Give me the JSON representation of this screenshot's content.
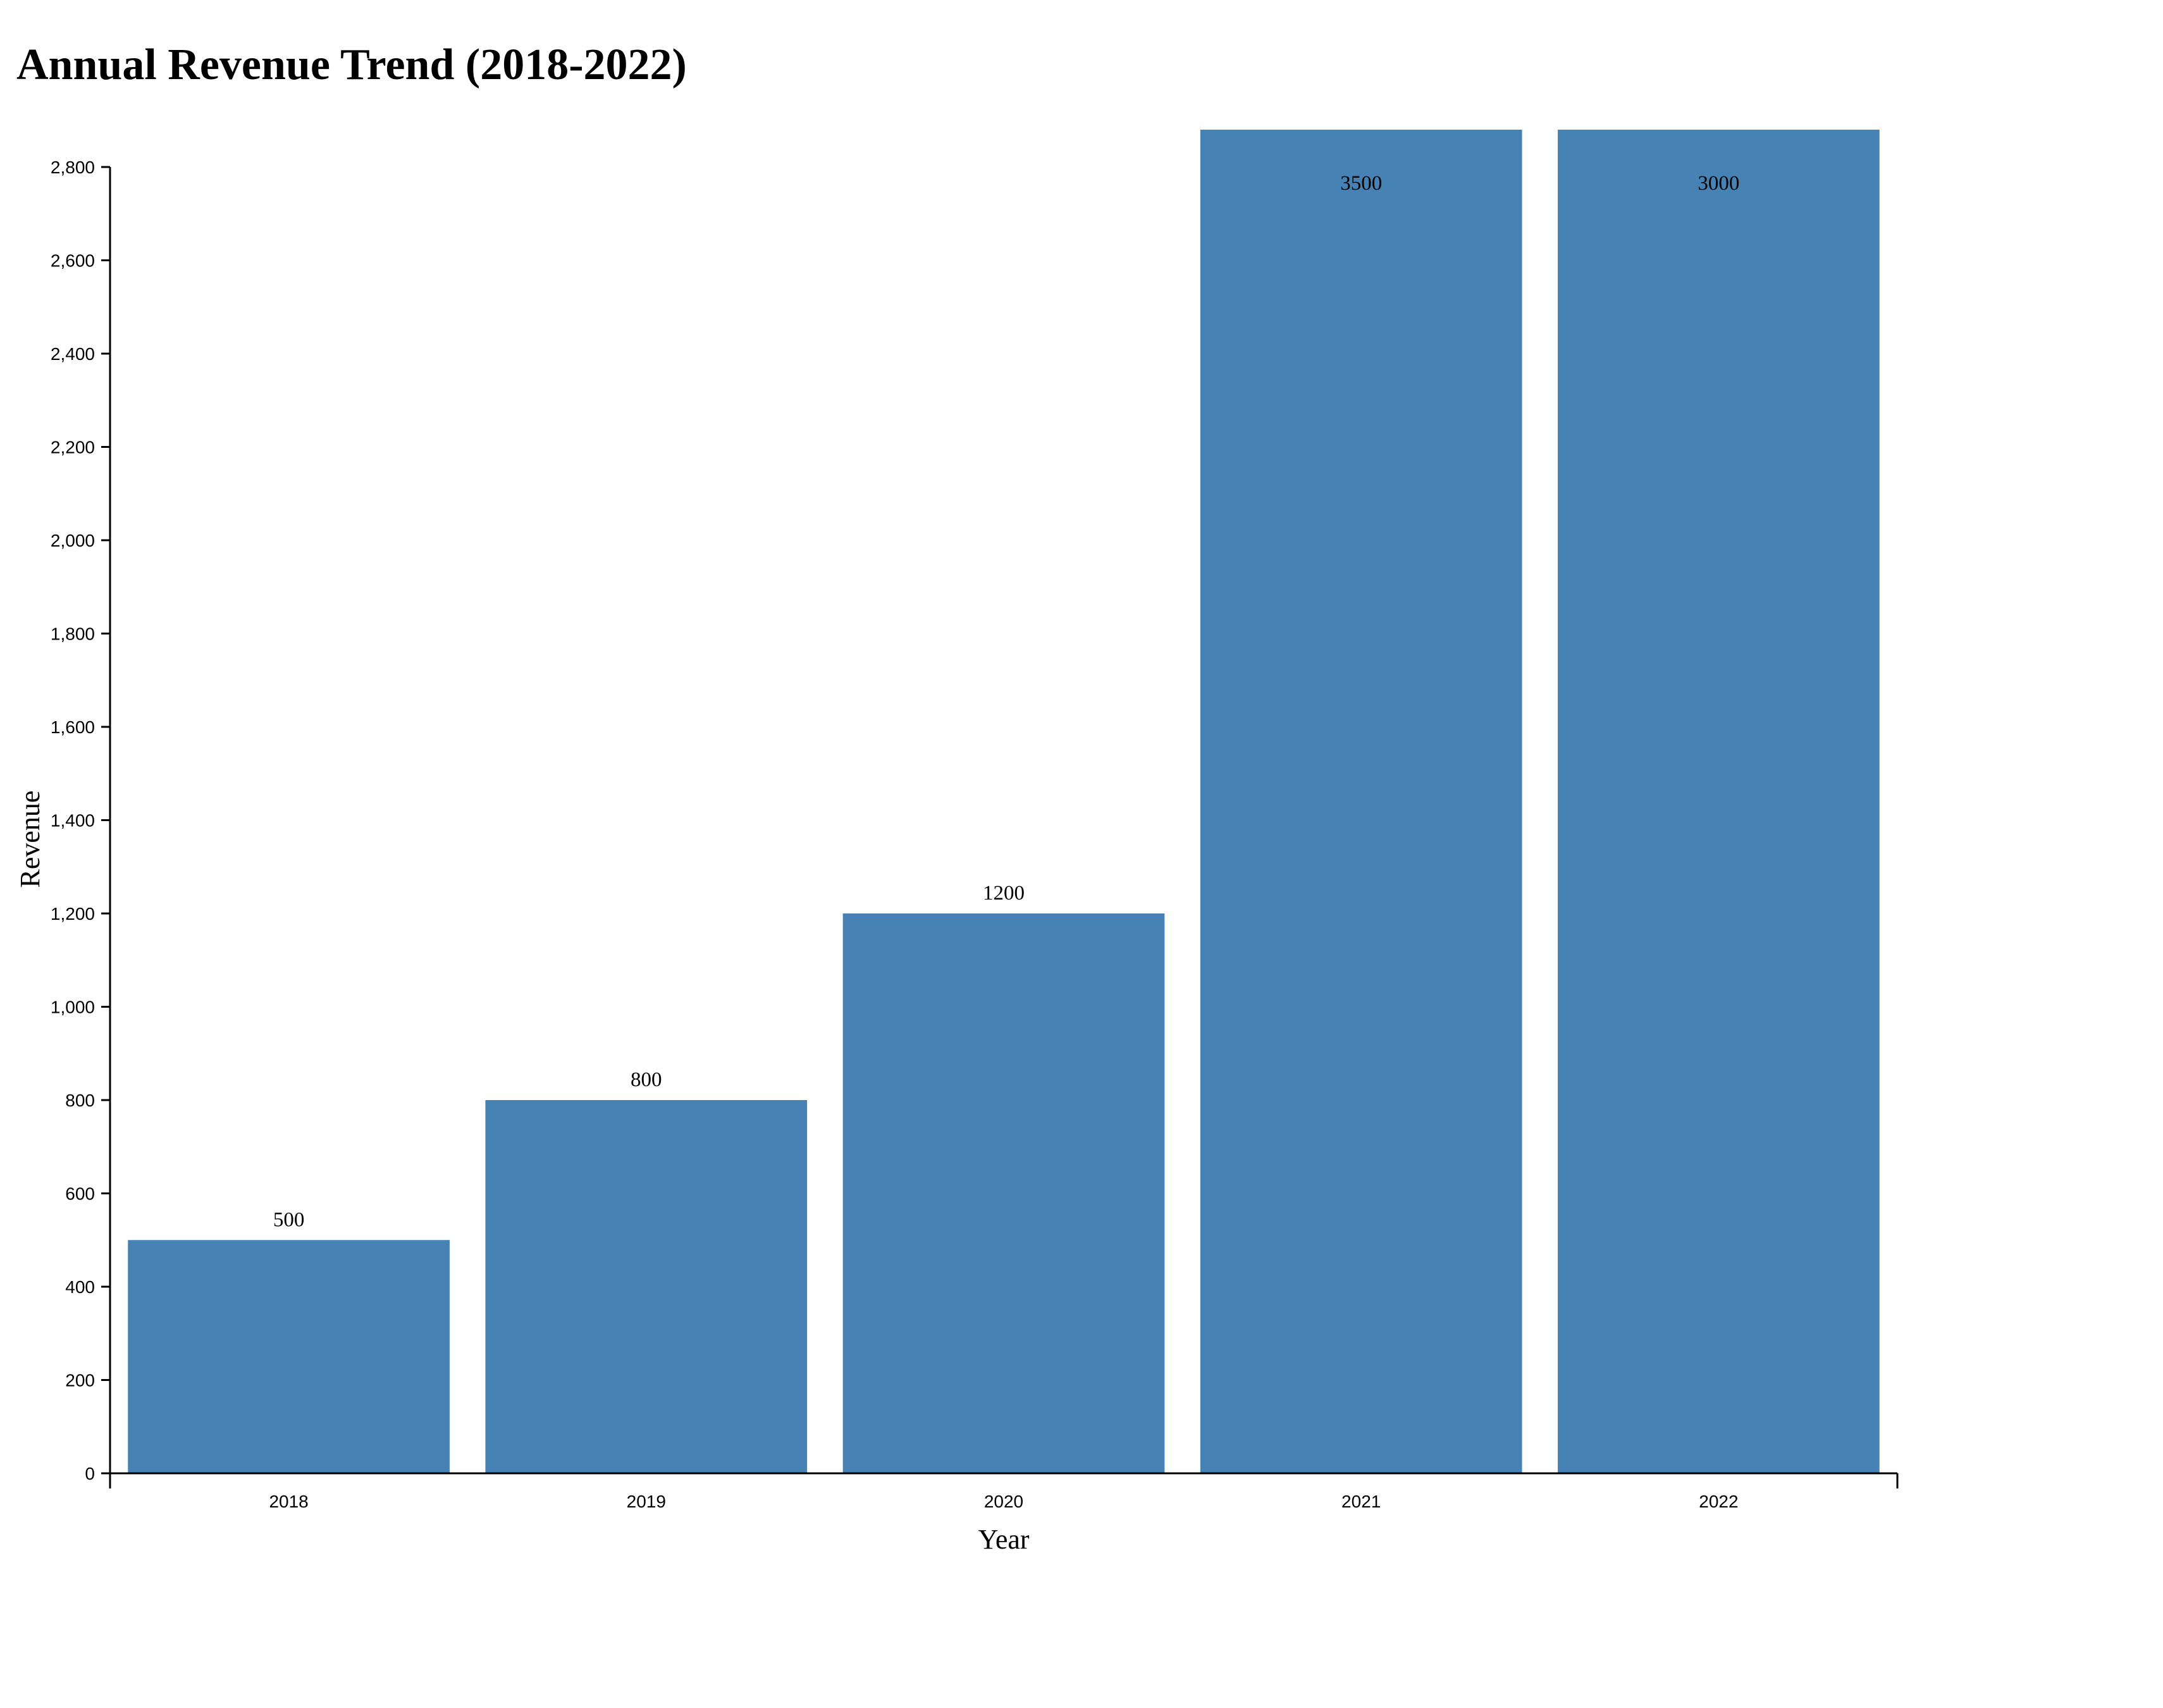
{
  "chart_data": {
    "type": "bar",
    "title": "Annual Revenue Trend (2018-2022)",
    "xlabel": "Year",
    "ylabel": "Revenue",
    "categories": [
      "2018",
      "2019",
      "2020",
      "2021",
      "2022"
    ],
    "values": [
      500,
      800,
      1200,
      3500,
      3000
    ],
    "value_labels": [
      "500",
      "800",
      "1200",
      "3500",
      "3000"
    ],
    "ylim": [
      0,
      2800
    ],
    "y_ticks": [
      0,
      200,
      400,
      600,
      800,
      1000,
      1200,
      1400,
      1600,
      1800,
      2000,
      2200,
      2400,
      2600,
      2800
    ],
    "y_tick_labels": [
      "0",
      "200",
      "400",
      "600",
      "800",
      "1,000",
      "1,200",
      "1,400",
      "1,600",
      "1,800",
      "2,000",
      "2,200",
      "2,400",
      "2,600",
      "2,800"
    ],
    "bar_color": "#4682b4",
    "grid": false,
    "legend": "none"
  }
}
